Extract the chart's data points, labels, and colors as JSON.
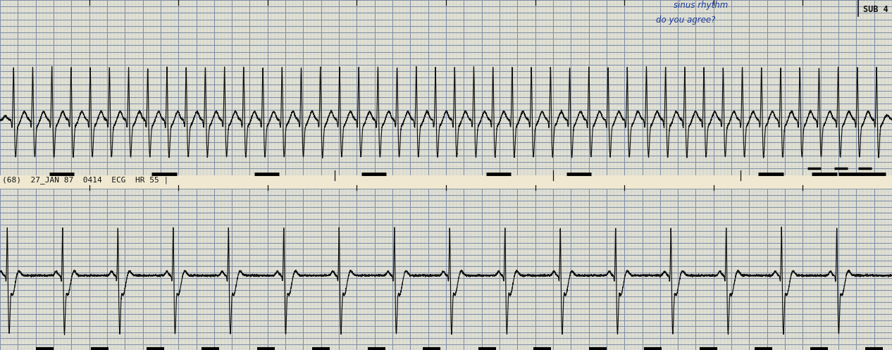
{
  "bg_color": "#f0e8d0",
  "grid_minor_color": "#b8c8d8",
  "grid_major_color": "#8090a8",
  "ecg_color": "#111111",
  "label_color": "#111111",
  "annotation_color": "#1a3a9a",
  "strip1_label": "SUB 4",
  "strip2_label": "(68)  27_JAN 87  0414  ECG  HR 55 |",
  "annotation_line1": "sinus rhythm",
  "annotation_line2": "do you agree?",
  "fig_width": 12.66,
  "fig_height": 4.97,
  "dpi": 100
}
